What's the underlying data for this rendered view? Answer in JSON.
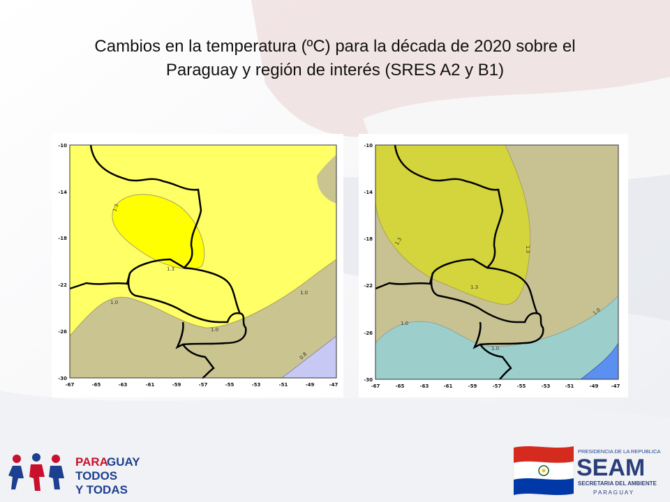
{
  "slide": {
    "title_line1": "Cambios en la temperatura (ºC) para la década de 2020 sobre el",
    "title_line2": "Paraguay y región de interés (SRES A2 y B1)"
  },
  "maps": [
    {
      "scenario": "SRES A2",
      "y_ticks": [
        "-10",
        "-14",
        "-18",
        "-22",
        "-26",
        "-30"
      ],
      "x_ticks": [
        "-67",
        "-65",
        "-63",
        "-61",
        "-59",
        "-57",
        "-55",
        "-53",
        "-51",
        "-49",
        "-47"
      ],
      "contour_labels": [
        "1.3",
        "1.3",
        "1.0",
        "1.0",
        "1.0",
        "0.8"
      ],
      "colors": {
        "high": "#ffff00",
        "mid": "#ffff66",
        "low": "#c9c490",
        "lowest": "#c8c8f4"
      }
    },
    {
      "scenario": "SRES B1",
      "y_ticks": [
        "-10",
        "-14",
        "-18",
        "-22",
        "-26",
        "-30"
      ],
      "x_ticks": [
        "-67",
        "-65",
        "-63",
        "-61",
        "-59",
        "-57",
        "-55",
        "-53",
        "-51",
        "-49",
        "-47"
      ],
      "contour_labels": [
        "1.3",
        "1.3",
        "1.3",
        "1.0",
        "1.0",
        "1.0"
      ],
      "colors": {
        "high": "#d4d43c",
        "mid": "#c8c292",
        "low": "#9ccfcc",
        "lowest": "#5b8ff0"
      }
    }
  ],
  "logos": {
    "left_line1_a": "PARA",
    "left_line1_b": "GUAY",
    "left_line2": "TODOS",
    "left_line3": "Y TODAS",
    "right_header": "PRESIDENCIA DE LA REPUBLICA",
    "right_brand": "SEAM",
    "right_sub": "SECRETARIA DEL AMBIENTE",
    "right_country": "P A R A G U A Y"
  }
}
